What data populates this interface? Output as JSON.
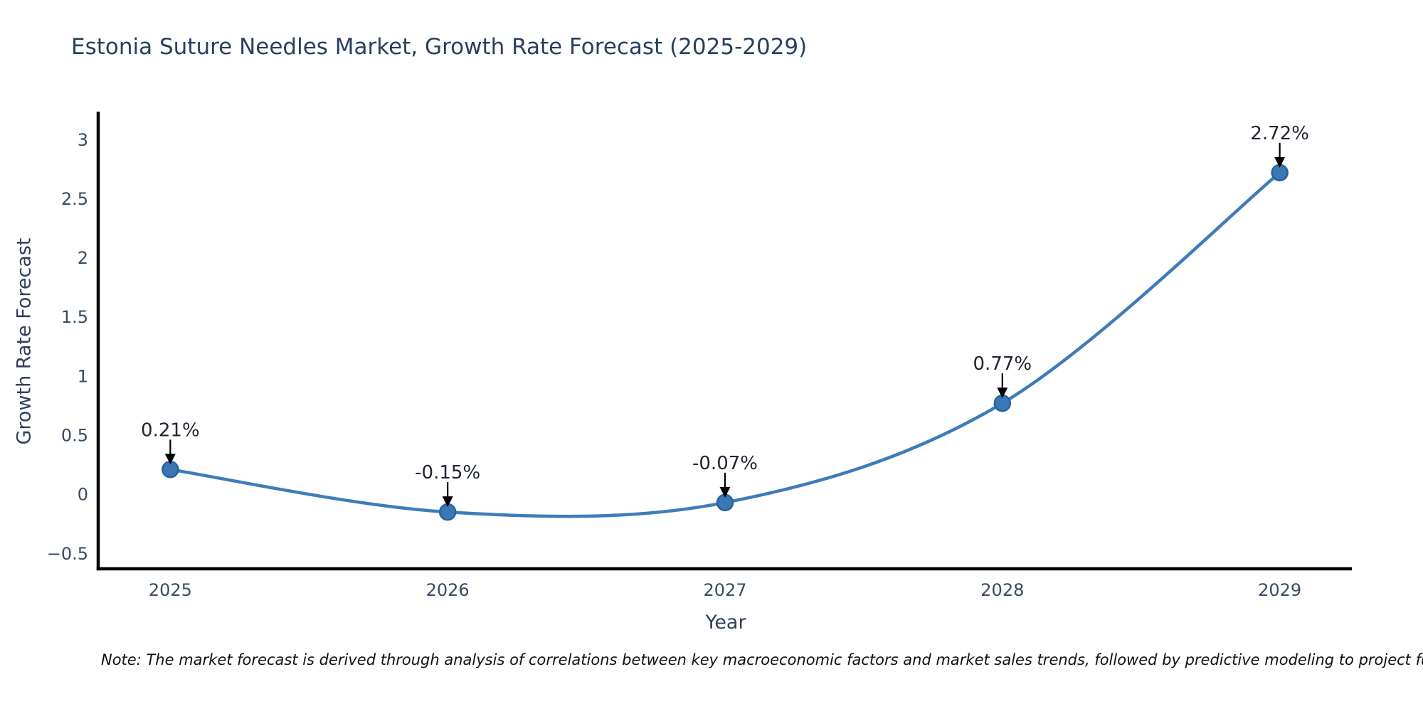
{
  "header": {
    "title": "Estonia Suture Needles Market, Growth Rate Forecast (2025-2029)"
  },
  "footnote": "Note: The market forecast is derived through analysis of correlations between key macroeconomic factors and market sales trends, followed by predictive modeling to project future sales",
  "chart_data": {
    "type": "line",
    "title": "Estonia Suture Needles Market, Growth Rate Forecast (2025-2029)",
    "xlabel": "Year",
    "ylabel": "Growth Rate Forecast",
    "categories": [
      2025,
      2026,
      2027,
      2028,
      2029
    ],
    "values": [
      0.21,
      -0.15,
      -0.07,
      0.77,
      2.72
    ],
    "point_labels": [
      "0.21%",
      "-0.15%",
      "-0.07%",
      "0.77%",
      "2.72%"
    ],
    "x_tick_labels": [
      "2025",
      "2026",
      "2027",
      "2028",
      "2029"
    ],
    "y_tick_values": [
      3,
      2.5,
      2,
      1.5,
      1,
      0.5,
      0,
      -0.5
    ],
    "y_tick_labels": [
      "3",
      "2.5",
      "2",
      "1.5",
      "1",
      "0.5",
      "0",
      "−0.5"
    ],
    "xlim": [
      2024.74,
      2029.26
    ],
    "ylim": [
      -0.63,
      3.23
    ],
    "grid": false,
    "legend": "none",
    "line_shape": "spline",
    "colors": {
      "line": "#3e7cb9",
      "marker_fill": "#3a77b4",
      "marker_edge": "#28639c",
      "arrow": "#000000",
      "axis_line": "#000000",
      "tick_text": "#3a4a63",
      "annotation_text": "#1f2430",
      "title_text": "#2a3f5f"
    }
  }
}
